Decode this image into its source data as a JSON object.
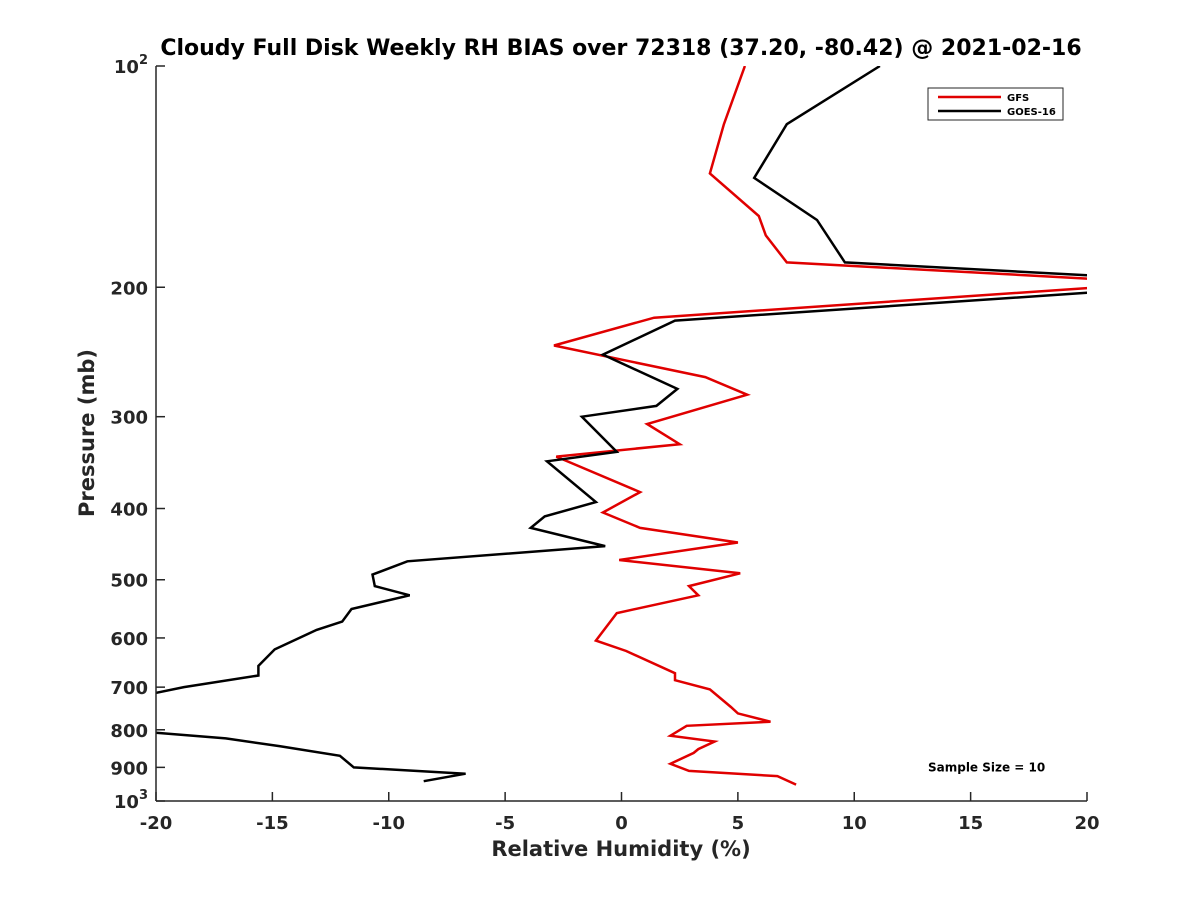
{
  "chart_data": {
    "type": "line",
    "title": "Cloudy Full Disk Weekly RH BIAS over 72318 (37.20, -80.42) @ 2021-02-16",
    "xlabel": "Relative Humidity (%)",
    "ylabel": "Pressure (mb)",
    "xlim": [
      -20,
      20
    ],
    "ylim": [
      100,
      1000
    ],
    "yscale": "log",
    "y_reversed": true,
    "grid": false,
    "legend_position": "top-right",
    "x_ticks": [
      {
        "value": -20,
        "label": "-20"
      },
      {
        "value": -15,
        "label": "-15"
      },
      {
        "value": -10,
        "label": "-10"
      },
      {
        "value": -5,
        "label": "-5"
      },
      {
        "value": 0,
        "label": "0"
      },
      {
        "value": 5,
        "label": "5"
      },
      {
        "value": 10,
        "label": "10"
      },
      {
        "value": 15,
        "label": "15"
      },
      {
        "value": 20,
        "label": "20"
      }
    ],
    "y_ticks": [
      {
        "value": 100,
        "base": "10",
        "exp": "2"
      },
      {
        "value": 200,
        "label": "200"
      },
      {
        "value": 300,
        "label": "300"
      },
      {
        "value": 400,
        "label": "400"
      },
      {
        "value": 500,
        "label": "500"
      },
      {
        "value": 600,
        "label": "600"
      },
      {
        "value": 700,
        "label": "700"
      },
      {
        "value": 800,
        "label": "800"
      },
      {
        "value": 900,
        "label": "900"
      },
      {
        "value": 1000,
        "base": "10",
        "exp": "3"
      }
    ],
    "series": [
      {
        "name": "GFS",
        "color": "#e00000",
        "points": [
          [
            5.3,
            100
          ],
          [
            4.4,
            120
          ],
          [
            3.8,
            140
          ],
          [
            5.9,
            160
          ],
          [
            6.2,
            170
          ],
          [
            7.1,
            185
          ],
          [
            20.5,
            195
          ],
          [
            20.5,
            200
          ],
          [
            1.4,
            220
          ],
          [
            -2.9,
            240
          ],
          [
            3.6,
            265
          ],
          [
            5.4,
            280
          ],
          [
            1.1,
            307
          ],
          [
            2.5,
            327
          ],
          [
            -2.8,
            340
          ],
          [
            0.8,
            380
          ],
          [
            -0.8,
            405
          ],
          [
            0.8,
            425
          ],
          [
            5.0,
            445
          ],
          [
            -0.1,
            470
          ],
          [
            5.1,
            490
          ],
          [
            2.9,
            510
          ],
          [
            3.3,
            525
          ],
          [
            -0.2,
            555
          ],
          [
            -1.1,
            605
          ],
          [
            0.2,
            625
          ],
          [
            2.3,
            670
          ],
          [
            2.3,
            685
          ],
          [
            3.8,
            705
          ],
          [
            4.7,
            745
          ],
          [
            5.0,
            760
          ],
          [
            6.4,
            780
          ],
          [
            2.8,
            790
          ],
          [
            2.1,
            815
          ],
          [
            4.0,
            830
          ],
          [
            3.3,
            850
          ],
          [
            3.1,
            860
          ],
          [
            2.1,
            890
          ],
          [
            2.9,
            910
          ],
          [
            6.7,
            925
          ],
          [
            7.5,
            950
          ]
        ]
      },
      {
        "name": "GOES-16",
        "color": "#000000",
        "points": [
          [
            11.1,
            100
          ],
          [
            7.1,
            120
          ],
          [
            5.7,
            142
          ],
          [
            8.4,
            162
          ],
          [
            9.6,
            185
          ],
          [
            20.5,
            193
          ],
          [
            20.5,
            203
          ],
          [
            2.3,
            222
          ],
          [
            -0.8,
            247
          ],
          [
            2.4,
            275
          ],
          [
            1.5,
            290
          ],
          [
            -1.7,
            300
          ],
          [
            -0.2,
            335
          ],
          [
            -3.2,
            345
          ],
          [
            -1.1,
            392
          ],
          [
            -3.3,
            410
          ],
          [
            -3.9,
            425
          ],
          [
            -0.7,
            450
          ],
          [
            -9.2,
            472
          ],
          [
            -10.7,
            492
          ],
          [
            -10.6,
            510
          ],
          [
            -9.1,
            525
          ],
          [
            -11.6,
            548
          ],
          [
            -12.0,
            570
          ],
          [
            -13.1,
            585
          ],
          [
            -14.9,
            622
          ],
          [
            -15.6,
            655
          ],
          [
            -15.6,
            675
          ],
          [
            -18.8,
            700
          ],
          [
            -20.5,
            718
          ],
          [
            -20.5,
            805
          ],
          [
            -17.0,
            822
          ],
          [
            -14.7,
            842
          ],
          [
            -12.1,
            868
          ],
          [
            -11.5,
            900
          ],
          [
            -6.7,
            918
          ],
          [
            -8.5,
            940
          ]
        ]
      }
    ],
    "annotations": [
      {
        "text": "Sample Size = 10",
        "x": 15,
        "y": 900
      }
    ]
  }
}
